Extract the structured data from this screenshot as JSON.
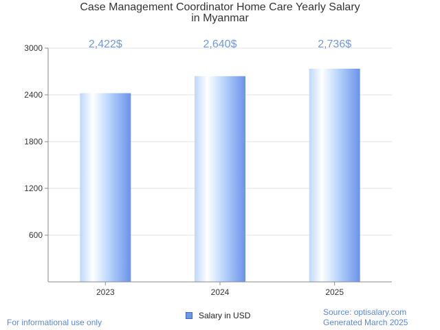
{
  "chart_data": {
    "type": "bar",
    "title_line1": "Case Management Coordinator Home Care Yearly Salary",
    "title_line2": "in Myanmar",
    "categories": [
      "2023",
      "2024",
      "2025"
    ],
    "series": [
      {
        "name": "Salary in USD",
        "values": [
          2422,
          2640,
          2736
        ]
      }
    ],
    "value_labels": [
      "2,422$",
      "2,640$",
      "2,736$"
    ],
    "yticks": [
      600,
      1200,
      1800,
      2400,
      3000
    ],
    "ylim": [
      0,
      3000
    ],
    "grid": true,
    "legend_position": "bottom-center",
    "colors": {
      "bar_light": "#ffffff",
      "bar_mid": "#bcd8fb",
      "bar_dark": "#6b93e9",
      "label": "#6f98dd"
    }
  },
  "footer": {
    "left": "For informational use only",
    "source": "Source: optisalary.com",
    "generated": "Generated March 2025"
  }
}
